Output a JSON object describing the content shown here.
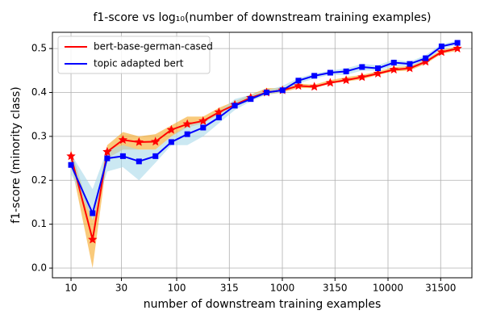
{
  "chart_data": {
    "type": "line",
    "title": "f1-score vs log₁₀(number of downstream training examples)",
    "x_label": "number of downstream training examples",
    "y_label": "f1-score (minority class)",
    "xscale": "log",
    "grid": true,
    "legend": "upper left",
    "x": [
      10,
      16,
      22,
      31,
      44,
      63,
      89,
      126,
      178,
      251,
      355,
      502,
      710,
      1004,
      1420,
      2008,
      2840,
      4016,
      5680,
      8032,
      11360,
      16064,
      22720,
      32128,
      45440
    ],
    "series": [
      {
        "name": "bert-base-german-cased",
        "color": "#ff0000",
        "band_color": "#f5a623",
        "marker": "star",
        "values": [
          0.255,
          0.065,
          0.265,
          0.292,
          0.287,
          0.288,
          0.315,
          0.328,
          0.335,
          0.355,
          0.372,
          0.388,
          0.4,
          0.405,
          0.415,
          0.413,
          0.422,
          0.428,
          0.435,
          0.443,
          0.452,
          0.455,
          0.47,
          0.492,
          0.5
        ],
        "lower": [
          0.24,
          0.0,
          0.25,
          0.27,
          0.27,
          0.27,
          0.3,
          0.32,
          0.33,
          0.35,
          0.37,
          0.385,
          0.395,
          0.4,
          0.41,
          0.41,
          0.42,
          0.425,
          0.43,
          0.44,
          0.448,
          0.45,
          0.465,
          0.488,
          0.495
        ],
        "upper": [
          0.27,
          0.11,
          0.28,
          0.31,
          0.3,
          0.305,
          0.325,
          0.345,
          0.345,
          0.365,
          0.38,
          0.395,
          0.41,
          0.41,
          0.42,
          0.418,
          0.428,
          0.435,
          0.44,
          0.448,
          0.458,
          0.46,
          0.475,
          0.497,
          0.505
        ]
      },
      {
        "name": "topic adapted bert",
        "color": "#0000ff",
        "band_color": "#a8d8ea",
        "marker": "square",
        "values": [
          0.235,
          0.125,
          0.25,
          0.255,
          0.243,
          0.255,
          0.287,
          0.305,
          0.32,
          0.343,
          0.37,
          0.385,
          0.4,
          0.405,
          0.427,
          0.438,
          0.445,
          0.448,
          0.458,
          0.455,
          0.468,
          0.465,
          0.478,
          0.505,
          0.513
        ],
        "lower": [
          0.215,
          0.11,
          0.22,
          0.23,
          0.2,
          0.24,
          0.28,
          0.28,
          0.3,
          0.33,
          0.36,
          0.38,
          0.395,
          0.4,
          0.42,
          0.432,
          0.44,
          0.44,
          0.45,
          0.45,
          0.46,
          0.46,
          0.47,
          0.5,
          0.508
        ],
        "upper": [
          0.26,
          0.18,
          0.27,
          0.28,
          0.27,
          0.27,
          0.3,
          0.325,
          0.335,
          0.355,
          0.385,
          0.395,
          0.405,
          0.415,
          0.433,
          0.443,
          0.45,
          0.455,
          0.465,
          0.462,
          0.475,
          0.47,
          0.485,
          0.51,
          0.518
        ]
      }
    ],
    "xlim": [
      6.67,
      62230
    ],
    "ylim": [
      -0.022,
      0.537
    ],
    "xticks": [
      10,
      30,
      100,
      315,
      1000,
      3150,
      10000,
      31500
    ],
    "yticks": [
      {
        "value": 0,
        "label": "0.0"
      },
      0.1,
      0.2,
      0.3,
      0.4,
      0.5
    ]
  }
}
